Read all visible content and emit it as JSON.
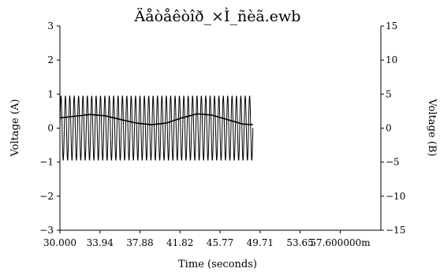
{
  "chart_data": {
    "type": "line",
    "title": "Äåòåêòîð_×Ì_ñèã.ewb",
    "xlabel": "Time (seconds)",
    "ylabel_left": "Voltage (A)",
    "ylabel_right": "Voltage (B)",
    "xlim": [
      30.0,
      61.6
    ],
    "ylim_left": [
      -3,
      3
    ],
    "ylim_right": [
      -15,
      15
    ],
    "x_tick_values": [
      30.0,
      33.94,
      37.88,
      41.82,
      45.77,
      49.71,
      53.65,
      57.6
    ],
    "x_tick_labels": [
      "30.000",
      "33.94",
      "37.88",
      "41.82",
      "45.77",
      "49.71",
      "53.65",
      "57.600000m"
    ],
    "y_left_ticks": [
      "3",
      "2",
      "1",
      "0",
      "−1",
      "−2",
      "−3"
    ],
    "y_right_ticks": [
      "15",
      "10",
      "5",
      "0",
      "−5",
      "−10",
      "−15"
    ],
    "grid": false,
    "series": [
      {
        "axis": "left",
        "style": "oscillation",
        "x_start": 30.0,
        "x_end": 49.0,
        "amplitude": 0.95,
        "cycles": 44
      },
      {
        "axis": "left",
        "style": "envelope",
        "x": [
          30.0,
          31.5,
          33.0,
          34.5,
          36.0,
          37.5,
          39.0,
          40.5,
          42.0,
          43.5,
          45.0,
          46.5,
          48.0,
          49.0
        ],
        "y": [
          0.3,
          0.35,
          0.4,
          0.36,
          0.25,
          0.15,
          0.1,
          0.15,
          0.3,
          0.42,
          0.38,
          0.25,
          0.12,
          0.1
        ]
      }
    ]
  }
}
